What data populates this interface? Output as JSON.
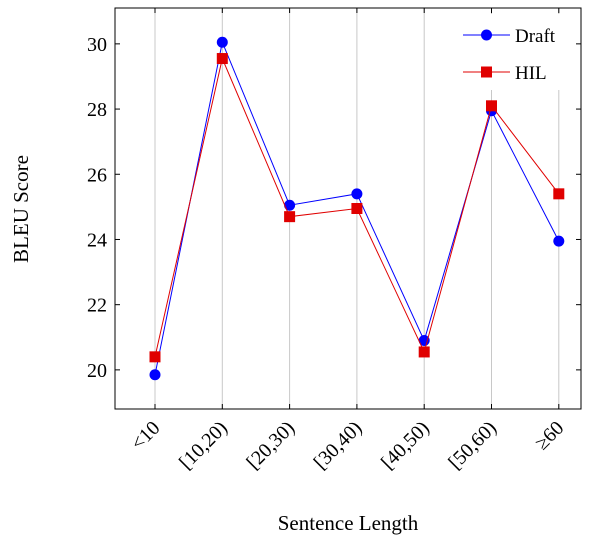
{
  "chart_data": {
    "type": "line",
    "categories": [
      "<10",
      "[10,20)",
      "[20,30)",
      "[30,40)",
      "[40,50)",
      "[50,60)",
      "≥60"
    ],
    "series": [
      {
        "name": "Draft",
        "values": [
          19.85,
          30.05,
          25.05,
          25.4,
          20.9,
          27.95,
          23.95
        ],
        "color": "#0000ff",
        "marker": "circle"
      },
      {
        "name": "HIL",
        "values": [
          20.4,
          29.55,
          24.7,
          24.95,
          20.55,
          28.1,
          25.4
        ],
        "color": "#e00000",
        "marker": "square"
      }
    ],
    "xlabel": "Sentence Length",
    "ylabel": "BLEU Score",
    "ylim": [
      18.8,
      31.1
    ],
    "yticks": [
      20,
      22,
      24,
      26,
      28,
      30
    ],
    "grid": "vertical",
    "legend_position": "top-right"
  }
}
